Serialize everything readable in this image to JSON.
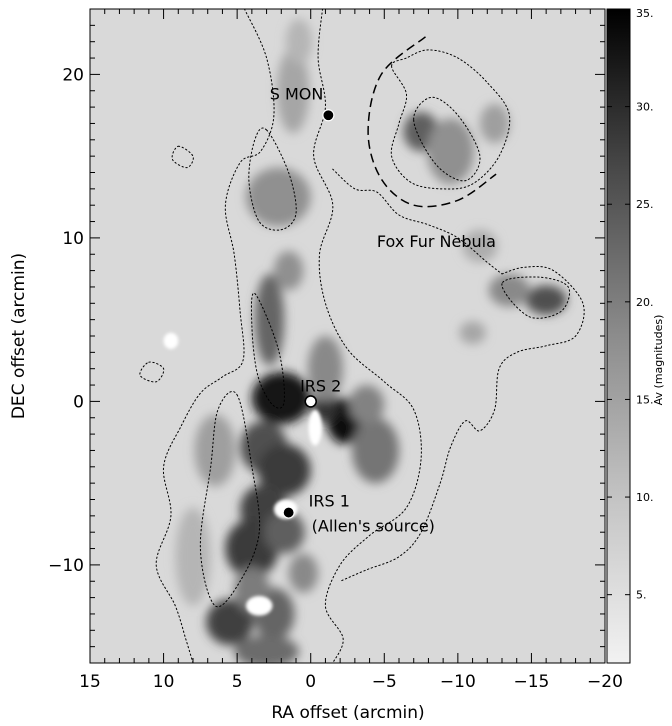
{
  "chart_data": {
    "type": "heatmap",
    "xlabel": "RA offset (arcmin)",
    "ylabel": "DEC offset (arcmin)",
    "xlim": [
      15,
      -20
    ],
    "ylim": [
      -16,
      24
    ],
    "xticks": [
      15,
      10,
      5,
      0,
      -5,
      -10,
      -15,
      -20
    ],
    "yticks": [
      20,
      10,
      0,
      -10
    ],
    "xtick_labels": [
      "15",
      "10",
      "5",
      "0",
      "−5",
      "−10",
      "−15",
      "−20"
    ],
    "ytick_labels": [
      "20",
      "10",
      "0",
      "−10"
    ],
    "colorbar": {
      "label": "Av (magnitudes)",
      "range": [
        1.5,
        35
      ],
      "ticks": [
        5,
        10,
        15,
        20,
        25,
        30,
        35
      ],
      "tick_labels": [
        "5.",
        "10.",
        "15.",
        "20.",
        "25.",
        "30.",
        "35."
      ]
    },
    "sources": [
      {
        "name": "S MON",
        "x": -1.2,
        "y": 17.5,
        "marker": "filled-circle"
      },
      {
        "name": "IRS 2",
        "x": 0.0,
        "y": 0.0,
        "marker": "open-circle"
      },
      {
        "name": "IRS 1",
        "sublabel": "(Allen's source)",
        "x": 1.5,
        "y": -6.8,
        "marker": "filled-circle"
      }
    ],
    "annotations": [
      {
        "text": "Fox Fur Nebula",
        "x": -4.5,
        "y": 9.8
      }
    ],
    "arc": {
      "style": "dashed",
      "points": [
        [
          -7.8,
          22.3
        ],
        [
          -4.8,
          20.0
        ],
        [
          -3.9,
          16.5
        ],
        [
          -4.8,
          13.6
        ],
        [
          -7.0,
          12.0
        ],
        [
          -10.0,
          12.3
        ],
        [
          -12.6,
          13.9
        ]
      ]
    },
    "density_blobs": [
      {
        "x": 2.0,
        "y": 0.2,
        "rx": 2.0,
        "ry": 1.6,
        "av": 32
      },
      {
        "x": -2.3,
        "y": -1.2,
        "rx": 1.2,
        "ry": 1.4,
        "av": 33
      },
      {
        "x": -1.0,
        "y": -0.3,
        "rx": 0.9,
        "ry": 1.0,
        "av": 28
      },
      {
        "x": 3.2,
        "y": -2.8,
        "rx": 1.6,
        "ry": 1.6,
        "av": 24
      },
      {
        "x": 1.8,
        "y": -4.2,
        "rx": 1.8,
        "ry": 1.6,
        "av": 27
      },
      {
        "x": 3.2,
        "y": -6.6,
        "rx": 1.6,
        "ry": 1.5,
        "av": 26
      },
      {
        "x": 4.0,
        "y": -9.0,
        "rx": 1.8,
        "ry": 1.8,
        "av": 27
      },
      {
        "x": 1.8,
        "y": -8.0,
        "rx": 1.4,
        "ry": 1.3,
        "av": 22
      },
      {
        "x": 5.5,
        "y": -13.5,
        "rx": 1.6,
        "ry": 1.4,
        "av": 26
      },
      {
        "x": 2.5,
        "y": -13.0,
        "rx": 1.4,
        "ry": 1.6,
        "av": 21
      },
      {
        "x": 3.0,
        "y": -15.3,
        "rx": 2.2,
        "ry": 1.0,
        "av": 20
      },
      {
        "x": 4.0,
        "y": -11.5,
        "rx": 1.2,
        "ry": 1.4,
        "av": 18
      },
      {
        "x": 2.8,
        "y": 5.0,
        "rx": 1.0,
        "ry": 2.8,
        "av": 21
      },
      {
        "x": 1.5,
        "y": 8.0,
        "rx": 1.0,
        "ry": 1.2,
        "av": 15
      },
      {
        "x": 2.2,
        "y": 12.5,
        "rx": 2.2,
        "ry": 1.8,
        "av": 15
      },
      {
        "x": 1.2,
        "y": 19.0,
        "rx": 1.1,
        "ry": 2.6,
        "av": 12
      },
      {
        "x": 0.8,
        "y": 22.0,
        "rx": 0.9,
        "ry": 1.4,
        "av": 10
      },
      {
        "x": -4.4,
        "y": -3.0,
        "rx": 1.6,
        "ry": 2.0,
        "av": 19
      },
      {
        "x": -3.8,
        "y": -0.2,
        "rx": 1.2,
        "ry": 1.2,
        "av": 17
      },
      {
        "x": -7.5,
        "y": 16.5,
        "rx": 1.2,
        "ry": 1.2,
        "av": 22
      },
      {
        "x": -9.5,
        "y": 15.3,
        "rx": 1.6,
        "ry": 2.0,
        "av": 15
      },
      {
        "x": -12.5,
        "y": 17.0,
        "rx": 1.0,
        "ry": 1.2,
        "av": 13
      },
      {
        "x": -16.0,
        "y": 6.2,
        "rx": 1.4,
        "ry": 0.9,
        "av": 24
      },
      {
        "x": -13.5,
        "y": 6.8,
        "rx": 1.4,
        "ry": 1.0,
        "av": 16
      },
      {
        "x": -11.0,
        "y": 4.2,
        "rx": 0.9,
        "ry": 0.7,
        "av": 12
      },
      {
        "x": -11.5,
        "y": 9.5,
        "rx": 1.2,
        "ry": 1.0,
        "av": 11
      },
      {
        "x": 8.0,
        "y": -9.5,
        "rx": 1.2,
        "ry": 3.0,
        "av": 10
      },
      {
        "x": 6.5,
        "y": -3.0,
        "rx": 1.4,
        "ry": 2.2,
        "av": 13
      },
      {
        "x": 0.5,
        "y": -10.5,
        "rx": 1.0,
        "ry": 1.2,
        "av": 16
      },
      {
        "x": -1.0,
        "y": 2.0,
        "rx": 1.2,
        "ry": 2.0,
        "av": 16
      }
    ],
    "cavities": [
      {
        "x": -0.3,
        "y": -1.6,
        "rx": 0.45,
        "ry": 1.1
      },
      {
        "x": 1.7,
        "y": -6.6,
        "rx": 0.8,
        "ry": 0.6
      },
      {
        "x": 3.5,
        "y": -12.5,
        "rx": 0.9,
        "ry": 0.6
      },
      {
        "x": 9.5,
        "y": 3.7,
        "rx": 0.5,
        "ry": 0.5
      }
    ],
    "contours": [
      [
        [
          3.0,
          16.6
        ],
        [
          1.5,
          14.0
        ],
        [
          1.0,
          11.5
        ],
        [
          2.0,
          10.5
        ],
        [
          3.5,
          11.0
        ],
        [
          4.2,
          13.5
        ],
        [
          3.8,
          16.0
        ]
      ],
      [
        [
          3.8,
          6.6
        ],
        [
          2.2,
          3.2
        ],
        [
          1.8,
          0.0
        ],
        [
          2.6,
          -0.2
        ],
        [
          3.6,
          1.6
        ],
        [
          4.0,
          4.6
        ]
      ],
      [
        [
          -7.0,
          17.2
        ],
        [
          -8.5,
          14.5
        ],
        [
          -10.5,
          13.5
        ],
        [
          -11.5,
          15.0
        ],
        [
          -10.0,
          17.5
        ],
        [
          -8.2,
          18.6
        ]
      ],
      [
        [
          -13.0,
          7.2
        ],
        [
          -14.8,
          5.2
        ],
        [
          -17.0,
          5.5
        ],
        [
          -17.5,
          7.0
        ],
        [
          -15.5,
          7.6
        ]
      ],
      [
        [
          5.0,
          0.4
        ],
        [
          4.0,
          -4.0
        ],
        [
          3.5,
          -8.0
        ],
        [
          4.8,
          -11.0
        ],
        [
          6.5,
          -12.5
        ],
        [
          7.5,
          -9.0
        ],
        [
          6.8,
          -4.0
        ],
        [
          6.3,
          -0.5
        ]
      ],
      [
        [
          4.5,
          24.0
        ],
        [
          3.0,
          21.0
        ],
        [
          2.5,
          17.5
        ],
        [
          3.4,
          15.3
        ],
        [
          4.8,
          14.6
        ],
        [
          5.8,
          12.0
        ],
        [
          5.2,
          9.0
        ],
        [
          4.8,
          5.5
        ],
        [
          4.6,
          2.5
        ],
        [
          6.0,
          1.5
        ],
        [
          7.5,
          0.5
        ],
        [
          8.8,
          -1.5
        ],
        [
          10.0,
          -4.0
        ],
        [
          9.5,
          -7.0
        ],
        [
          10.5,
          -10.0
        ],
        [
          9.2,
          -12.5
        ],
        [
          8.5,
          -14.5
        ],
        [
          8.0,
          -16.0
        ]
      ],
      [
        [
          -0.8,
          24.0
        ],
        [
          -0.5,
          21.0
        ],
        [
          -1.0,
          18.0
        ],
        [
          -0.2,
          15.0
        ],
        [
          -1.5,
          12.0
        ],
        [
          -0.6,
          9.0
        ],
        [
          -1.0,
          6.0
        ],
        [
          -2.5,
          3.2
        ],
        [
          -5.0,
          1.2
        ],
        [
          -7.0,
          -0.5
        ],
        [
          -7.5,
          -3.5
        ],
        [
          -6.5,
          -6.5
        ],
        [
          -4.0,
          -8.2
        ],
        [
          -2.0,
          -10.0
        ],
        [
          -1.0,
          -12.5
        ],
        [
          -2.2,
          -14.5
        ],
        [
          -1.5,
          -16.0
        ]
      ],
      [
        [
          -1.5,
          14.2
        ],
        [
          -3.0,
          13.0
        ],
        [
          -4.5,
          12.8
        ],
        [
          -6.0,
          11.4
        ],
        [
          -8.0,
          10.8
        ],
        [
          -10.0,
          10.0
        ],
        [
          -12.0,
          8.5
        ],
        [
          -13.0,
          7.8
        ]
      ],
      [
        [
          -13.0,
          7.8
        ],
        [
          -14.5,
          8.2
        ],
        [
          -16.5,
          8.0
        ],
        [
          -18.5,
          6.0
        ],
        [
          -18.0,
          4.0
        ],
        [
          -16.0,
          3.4
        ],
        [
          -14.0,
          3.0
        ],
        [
          -12.8,
          2.0
        ],
        [
          -12.5,
          -0.5
        ],
        [
          -11.5,
          -1.8
        ],
        [
          -10.5,
          -1.2
        ],
        [
          -9.5,
          -2.8
        ],
        [
          -8.8,
          -5.0
        ],
        [
          -7.5,
          -8.0
        ],
        [
          -6.0,
          -9.5
        ],
        [
          -3.8,
          -10.3
        ],
        [
          -2.0,
          -11.0
        ]
      ],
      [
        [
          -5.5,
          20.5
        ],
        [
          -6.5,
          18.8
        ],
        [
          -6.0,
          17.0
        ],
        [
          -5.5,
          15.0
        ],
        [
          -6.8,
          13.4
        ],
        [
          -9.0,
          13.0
        ],
        [
          -11.0,
          13.3
        ],
        [
          -12.8,
          15.0
        ],
        [
          -13.5,
          17.5
        ],
        [
          -12.0,
          19.5
        ],
        [
          -10.0,
          21.0
        ],
        [
          -8.0,
          21.5
        ],
        [
          -6.5,
          21.0
        ]
      ],
      [
        [
          9.0,
          15.6
        ],
        [
          8.0,
          15.0
        ],
        [
          8.4,
          14.3
        ],
        [
          9.4,
          14.8
        ]
      ],
      [
        [
          11.0,
          2.4
        ],
        [
          10.0,
          2.0
        ],
        [
          10.5,
          1.2
        ],
        [
          11.6,
          1.6
        ]
      ]
    ]
  }
}
